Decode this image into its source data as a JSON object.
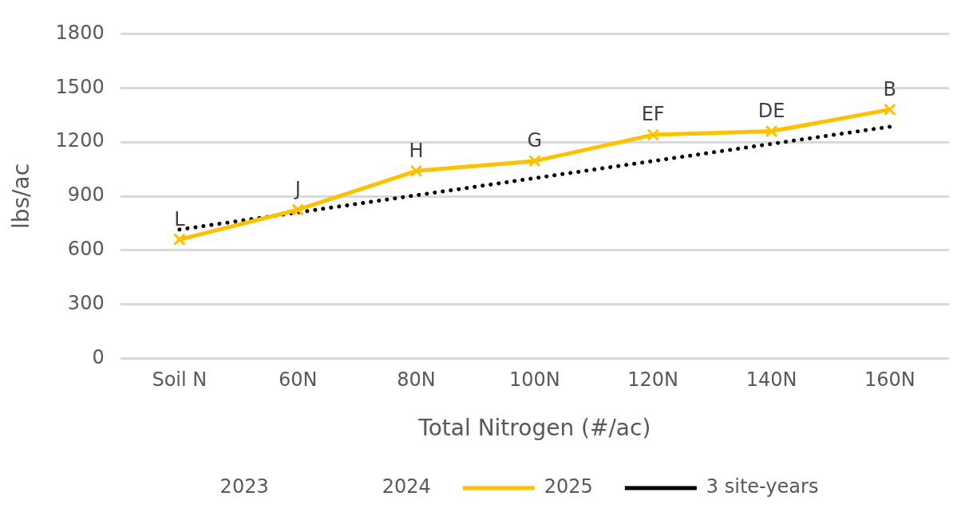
{
  "chart_data": {
    "type": "line",
    "xlabel": "Total Nitrogen (#/ac)",
    "ylabel": "lbs/ac",
    "categories": [
      "Soil N",
      "60N",
      "80N",
      "100N",
      "120N",
      "140N",
      "160N"
    ],
    "series": [
      {
        "name": "2023",
        "values": [
          null,
          null,
          null,
          null,
          null,
          null,
          null
        ]
      },
      {
        "name": "2024",
        "values": [
          null,
          null,
          null,
          null,
          null,
          null,
          null
        ]
      },
      {
        "name": "2025",
        "color": "#ffc000",
        "marker": "cross",
        "line_style": "solid",
        "values": [
          660,
          825,
          1040,
          1095,
          1240,
          1260,
          1380
        ],
        "value_labels": [
          "L",
          "J",
          "H",
          "G",
          "EF",
          "DE",
          "B"
        ]
      },
      {
        "name": "3 site-years",
        "color": "#000000",
        "marker": "none",
        "line_style": "dotted",
        "values": [
          715,
          810,
          905,
          1000,
          1095,
          1190,
          1285
        ]
      }
    ],
    "ylim": [
      0,
      1800
    ],
    "yticks": [
      0,
      300,
      600,
      900,
      1200,
      1500,
      1800
    ],
    "grid": "y",
    "legend": "bottom"
  }
}
